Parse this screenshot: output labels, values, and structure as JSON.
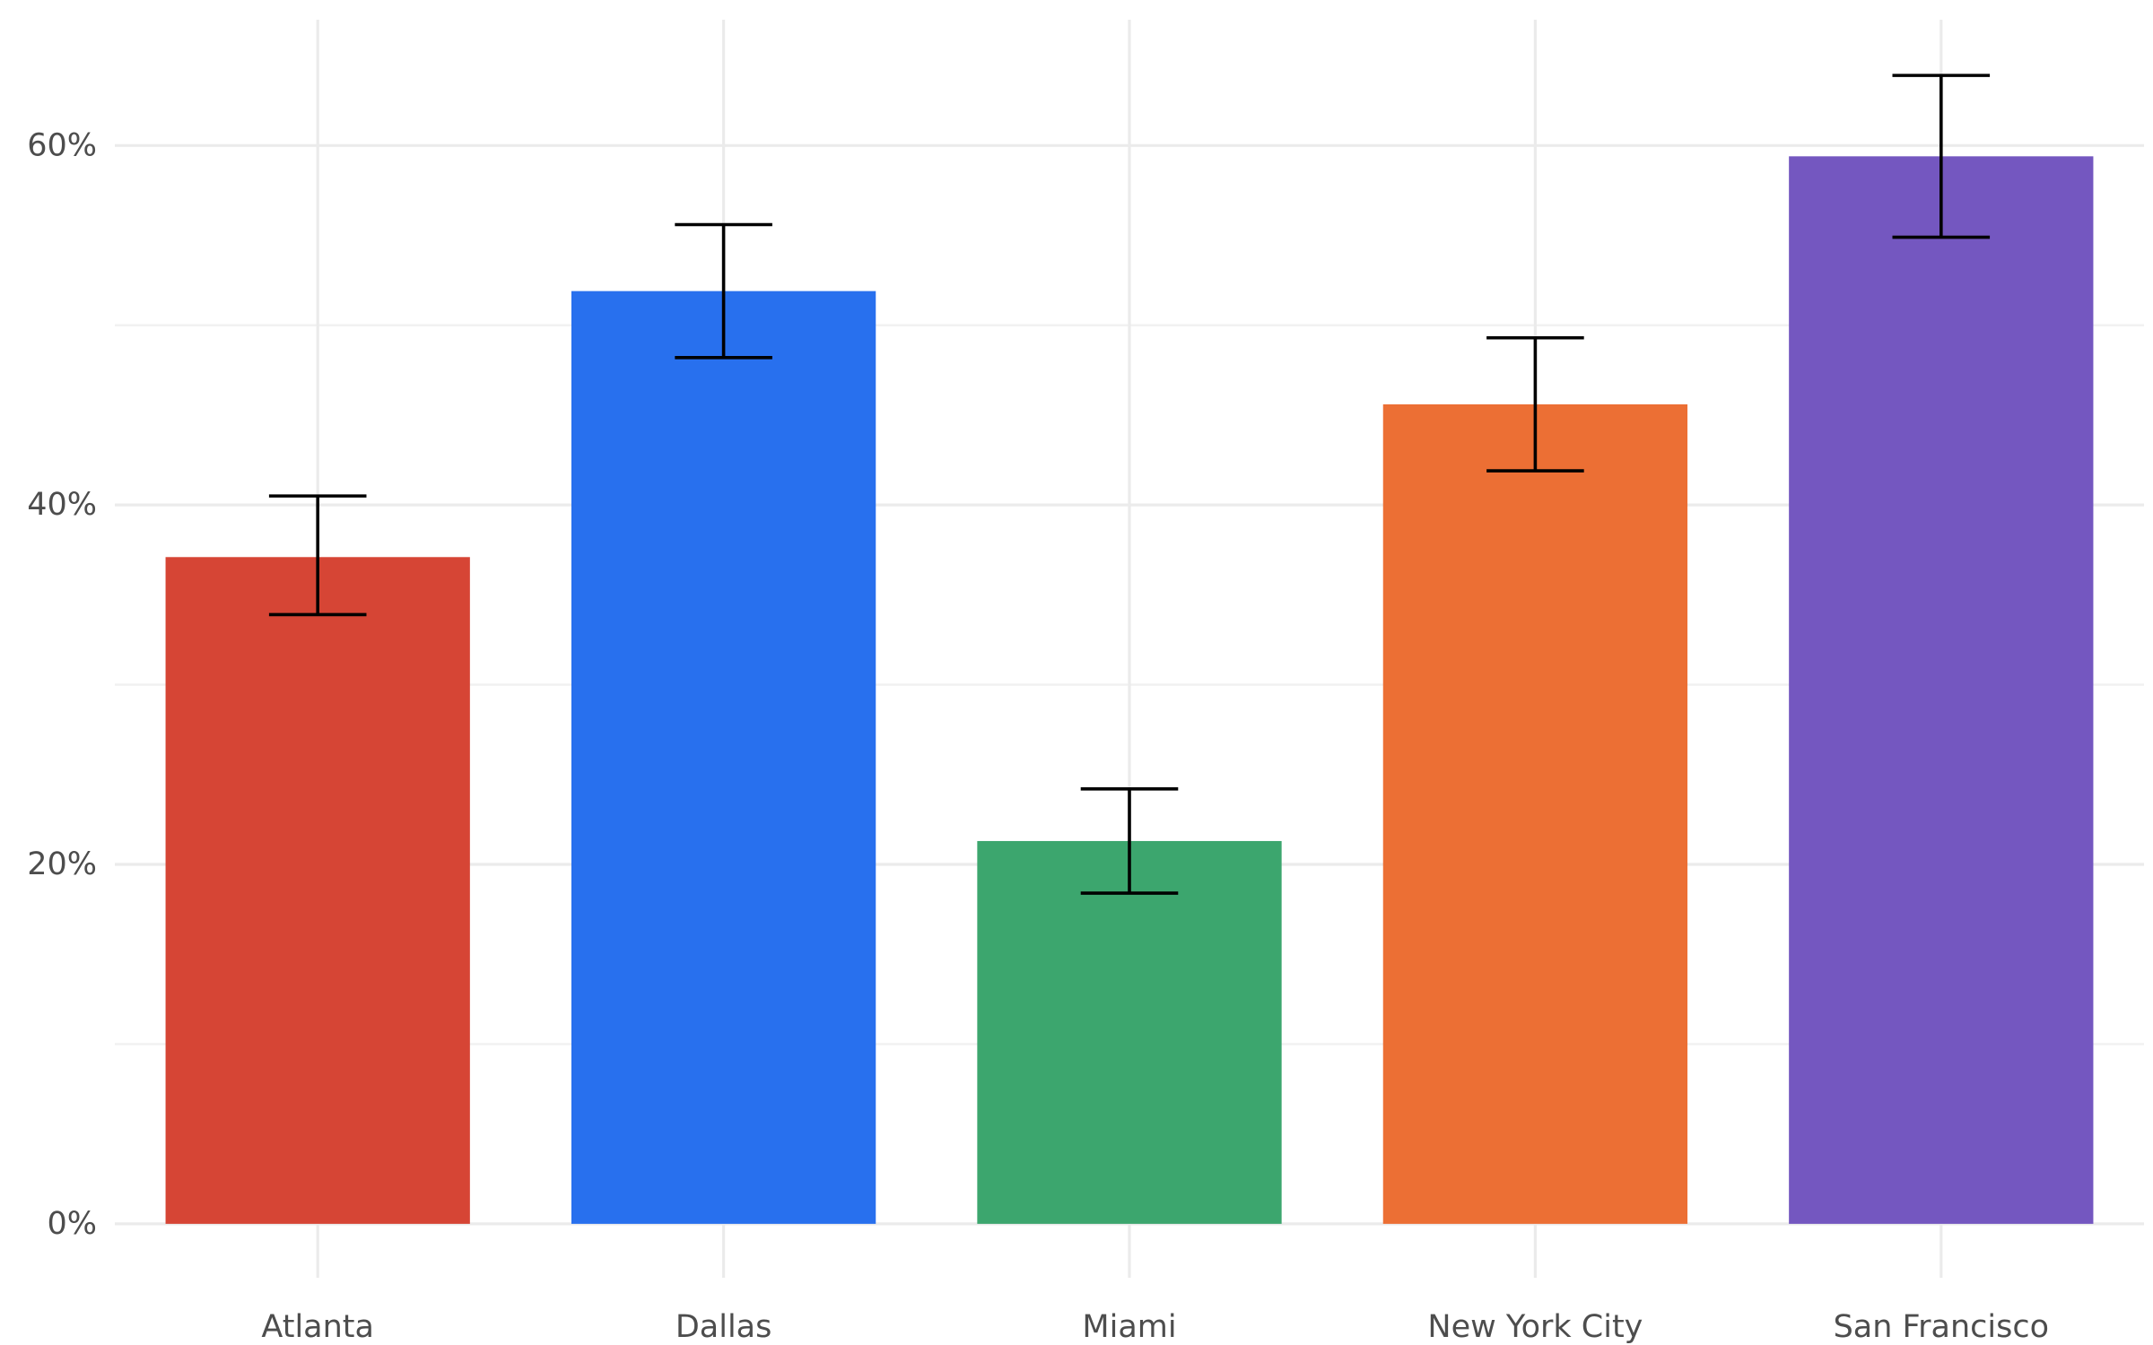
{
  "chart_data": {
    "type": "bar",
    "title": "",
    "xlabel": "",
    "ylabel": "",
    "categories": [
      "Atlanta",
      "Dallas",
      "Miami",
      "New York City",
      "San Francisco"
    ],
    "values": [
      0.371,
      0.519,
      0.213,
      0.456,
      0.594
    ],
    "error_low": [
      0.339,
      0.482,
      0.184,
      0.419,
      0.549
    ],
    "error_high": [
      0.405,
      0.556,
      0.242,
      0.493,
      0.639
    ],
    "colors": [
      "#d64535",
      "#2870ee",
      "#3ca66e",
      "#ec6f34",
      "#7457c0"
    ],
    "ylim": [
      -0.03,
      0.67
    ],
    "yticks": [
      0,
      0.2,
      0.4,
      0.6
    ],
    "ytick_labels": [
      "0%",
      "20%",
      "40%",
      "60%"
    ],
    "y_minor_ticks": [
      0.1,
      0.3,
      0.5
    ],
    "grid": true,
    "legend": "none"
  }
}
